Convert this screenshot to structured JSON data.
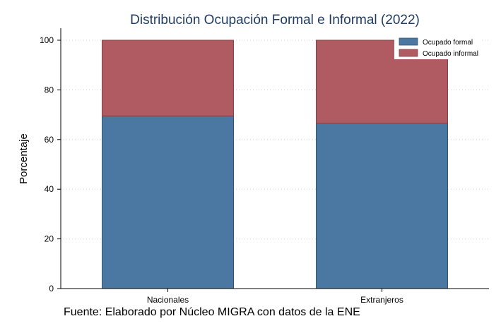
{
  "chart_data": {
    "type": "bar",
    "stacked": true,
    "title": "Distribución Ocupación Formal e Informal (2022)",
    "xlabel": "",
    "ylabel": "Porcentaje",
    "categories": [
      "Nacionales",
      "Extranjeros"
    ],
    "series": [
      {
        "name": "Ocupado formal",
        "values": [
          69.5,
          66.6
        ],
        "color": "#4a78a2"
      },
      {
        "name": "Ocupado informal",
        "values": [
          30.5,
          33.4
        ],
        "color": "#b05b61"
      }
    ],
    "ylim": [
      0,
      100
    ],
    "yticks": [
      "0",
      "20",
      "40",
      "60",
      "80",
      "100"
    ],
    "grid": true,
    "legend_position": "top-right",
    "note": "Fuente: Elaborado por Núcleo MIGRA con datos de la ENE"
  }
}
